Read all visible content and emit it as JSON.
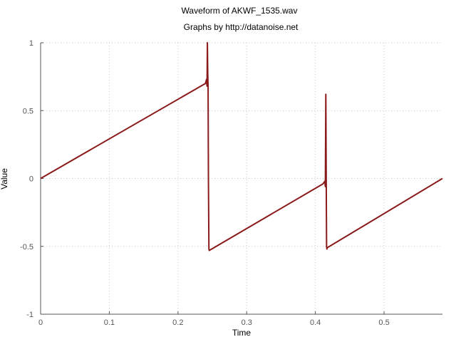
{
  "chart_data": {
    "type": "line",
    "title": "Waveform of AKWF_1535.wav",
    "subtitle": "Graphs by http://datanoise.net",
    "xlabel": "Time",
    "ylabel": "Value",
    "xlim": [
      0,
      0.585
    ],
    "ylim": [
      -1,
      1
    ],
    "xticks": [
      0,
      0.1,
      0.2,
      0.3,
      0.4,
      0.5
    ],
    "xtick_labels": [
      "0",
      "0.1",
      "0.2",
      "0.3",
      "0.4",
      "0.5"
    ],
    "yticks": [
      -1,
      -0.5,
      0,
      0.5,
      1
    ],
    "ytick_labels": [
      "-1",
      "-0.5",
      "0",
      "0.5",
      "1"
    ],
    "grid": true,
    "legend": "none",
    "series": [
      {
        "color": "#8b1a1a",
        "x": [
          0,
          0.24,
          0.2415,
          0.2423,
          0.2428,
          0.2433,
          0.2438,
          0.2443,
          0.245,
          0.2455,
          0.411,
          0.4138,
          0.4145,
          0.4152,
          0.4158,
          0.4163,
          0.4168,
          0.4173,
          0.585
        ],
        "y": [
          0,
          0.7,
          0.73,
          0.68,
          1.0,
          0.78,
          0.68,
          0.0,
          -0.52,
          -0.53,
          -0.04,
          -0.02,
          -0.06,
          0.62,
          0.0,
          -0.5,
          -0.52,
          -0.51,
          0.0
        ]
      }
    ]
  }
}
